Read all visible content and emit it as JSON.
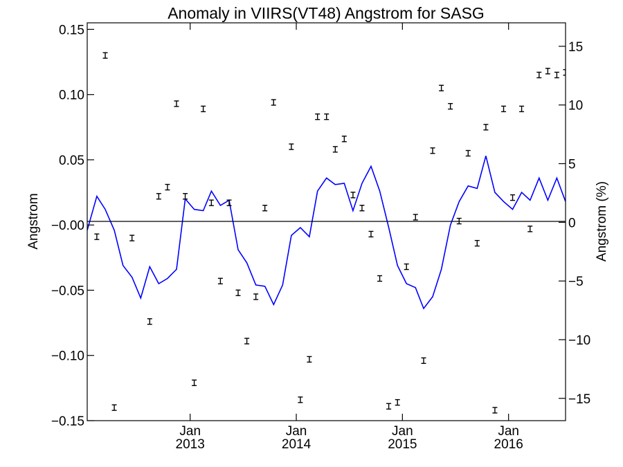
{
  "chart_data": {
    "type": "line",
    "title": "Anomaly in VIIRS(VT48) Angstrom for SASG",
    "ylabel": "Angstrom",
    "ylabel_right": "Angstrom (%)",
    "ylim": [
      -0.15,
      0.155
    ],
    "y_ticks": [
      -0.15,
      -0.1,
      -0.05,
      0.0,
      0.05,
      0.1,
      0.15
    ],
    "y_tick_labels": [
      "−0.15",
      "−0.10",
      "−0.05",
      "−0.00",
      "0.05",
      "0.10",
      "0.15"
    ],
    "ylim_right": [
      -16.9,
      17.0
    ],
    "y2_ticks": [
      -15,
      -10,
      -5,
      0,
      5,
      10,
      15
    ],
    "y2_tick_labels": [
      "−15",
      "−10",
      "−5",
      "0",
      "5",
      "10",
      "15"
    ],
    "xlim": [
      "2012-01-13",
      "2016-07-15"
    ],
    "x_ticks": [
      {
        "date": "2013-01-01",
        "month": "Jan",
        "year": "2013"
      },
      {
        "date": "2014-01-01",
        "month": "Jan",
        "year": "2014"
      },
      {
        "date": "2015-01-01",
        "month": "Jan",
        "year": "2015"
      },
      {
        "date": "2016-01-01",
        "month": "Jan",
        "year": "2016"
      }
    ],
    "grid": false,
    "zero_line": true,
    "series": [
      {
        "kind": "line",
        "color": "#0000ff",
        "x": [
          "2012-01-13",
          "2012-02-15",
          "2012-03-15",
          "2012-04-15",
          "2012-05-15",
          "2012-06-15",
          "2012-07-15",
          "2012-08-15",
          "2012-09-15",
          "2012-10-15",
          "2012-11-15",
          "2012-12-15",
          "2013-01-15",
          "2013-02-15",
          "2013-03-15",
          "2013-04-15",
          "2013-05-15",
          "2013-06-15",
          "2013-07-15",
          "2013-08-15",
          "2013-09-15",
          "2013-10-15",
          "2013-11-15",
          "2013-12-15",
          "2014-01-15",
          "2014-02-15",
          "2014-03-15",
          "2014-04-15",
          "2014-05-15",
          "2014-06-15",
          "2014-07-15",
          "2014-08-15",
          "2014-09-15",
          "2014-10-15",
          "2014-11-15",
          "2014-12-15",
          "2015-01-15",
          "2015-02-15",
          "2015-03-15",
          "2015-04-15",
          "2015-05-15",
          "2015-06-15",
          "2015-07-15",
          "2015-08-15",
          "2015-09-15",
          "2015-10-15",
          "2015-11-15",
          "2015-12-15",
          "2016-01-15",
          "2016-02-15",
          "2016-03-15",
          "2016-04-15",
          "2016-05-15",
          "2016-06-15",
          "2016-07-15"
        ],
        "values": [
          -0.004,
          0.022,
          0.012,
          -0.004,
          -0.031,
          -0.04,
          -0.056,
          -0.032,
          -0.045,
          -0.041,
          -0.034,
          0.02,
          0.012,
          0.011,
          0.026,
          0.015,
          0.019,
          -0.019,
          -0.029,
          -0.046,
          -0.047,
          -0.061,
          -0.046,
          -0.008,
          -0.002,
          -0.009,
          0.026,
          0.036,
          0.031,
          0.032,
          0.011,
          0.032,
          0.045,
          0.026,
          -0.002,
          -0.031,
          -0.045,
          -0.048,
          -0.064,
          -0.055,
          -0.034,
          0.0,
          0.018,
          0.03,
          0.028,
          0.053,
          0.025,
          0.018,
          0.012,
          0.025,
          0.019,
          0.036,
          0.019,
          0.036,
          0.018
        ]
      },
      {
        "kind": "points",
        "color": "#000000",
        "marker": "errorbar",
        "x": [
          "2012-02-15",
          "2012-03-15",
          "2012-04-15",
          "2012-06-15",
          "2012-08-15",
          "2012-09-15",
          "2012-10-15",
          "2012-11-15",
          "2012-12-15",
          "2013-01-15",
          "2013-02-15",
          "2013-03-15",
          "2013-04-15",
          "2013-05-15",
          "2013-06-15",
          "2013-07-15",
          "2013-08-15",
          "2013-09-15",
          "2013-10-15",
          "2013-12-15",
          "2014-01-15",
          "2014-02-15",
          "2014-03-15",
          "2014-04-15",
          "2014-05-15",
          "2014-06-15",
          "2014-07-15",
          "2014-08-15",
          "2014-09-15",
          "2014-10-15",
          "2014-11-15",
          "2014-12-15",
          "2015-01-15",
          "2015-02-15",
          "2015-03-15",
          "2015-04-15",
          "2015-05-15",
          "2015-06-15",
          "2015-07-15",
          "2015-08-15",
          "2015-09-15",
          "2015-10-15",
          "2015-11-15",
          "2015-12-15",
          "2016-01-15",
          "2016-02-15",
          "2016-03-15",
          "2016-04-15",
          "2016-05-15",
          "2016-06-15",
          "2016-07-15"
        ],
        "values": [
          -0.009,
          0.13,
          -0.14,
          -0.01,
          -0.074,
          0.022,
          0.029,
          0.093,
          0.022,
          -0.121,
          0.089,
          0.017,
          -0.043,
          0.017,
          -0.052,
          -0.089,
          -0.055,
          0.013,
          0.094,
          0.06,
          -0.134,
          -0.103,
          0.083,
          0.083,
          0.058,
          0.066,
          0.023,
          0.013,
          -0.007,
          -0.041,
          -0.139,
          -0.136,
          -0.032,
          0.006,
          -0.104,
          0.057,
          0.105,
          0.091,
          0.003,
          0.055,
          -0.014,
          0.075,
          -0.142,
          0.089,
          0.021,
          0.089,
          -0.003,
          0.115,
          0.118,
          0.115,
          0.117
        ]
      }
    ]
  }
}
